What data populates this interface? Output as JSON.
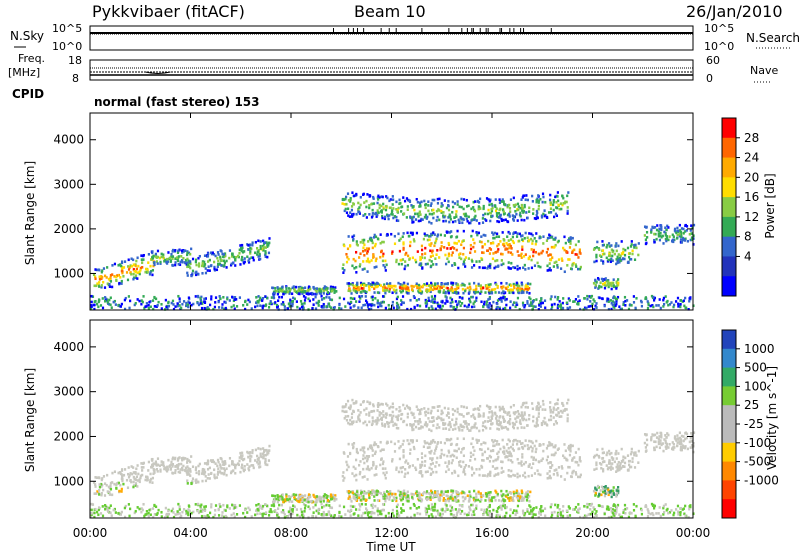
{
  "header": {
    "station": "Pykkvibaer (fitACF)",
    "beam": "Beam 10",
    "date": "26/Jan/2010"
  },
  "sky_panel": {
    "left_label": "N.Sky",
    "right_label": "N.Search",
    "left_ticks": [
      "10^5",
      "10^0"
    ],
    "right_ticks": [
      "10^5",
      "10^0"
    ]
  },
  "freq_panel": {
    "left_label_1": "Freq.",
    "left_label_2": "[MHz]",
    "right_label": "Nave",
    "left_ticks": [
      "18",
      "8"
    ],
    "right_ticks": [
      "60",
      "0"
    ],
    "cpid_label": "CPID",
    "cpid_text": "normal (fast stereo) 153"
  },
  "chart_data": [
    {
      "type": "heatmap",
      "name": "power",
      "ylabel": "Slant Range [km]",
      "yticks": [
        "4000",
        "3000",
        "2000",
        "1000"
      ],
      "ylim": [
        180,
        4600
      ],
      "xlim": [
        0,
        24
      ],
      "colorbar": {
        "label": "Power [dB]",
        "ticks": [
          "28",
          "24",
          "20",
          "16",
          "12",
          "8",
          "4"
        ],
        "colors": [
          "#ff0000",
          "#ff6600",
          "#ffaa00",
          "#ffdd00",
          "#88cc44",
          "#33aa55",
          "#3366cc",
          "#2233bb",
          "#0000ff"
        ]
      }
    },
    {
      "type": "heatmap",
      "name": "velocity",
      "ylabel": "Slant Range [km]",
      "yticks": [
        "4000",
        "3000",
        "2000",
        "1000"
      ],
      "ylim": [
        180,
        4600
      ],
      "xlim": [
        0,
        24
      ],
      "colorbar": {
        "label": "Velocity [m s^-1]",
        "ticks": [
          "1000",
          "500",
          "100",
          "25",
          "-25",
          "-100",
          "-500",
          "-1000"
        ],
        "colors": [
          "#2244bb",
          "#3388cc",
          "#33aa66",
          "#77cc33",
          "#bbbbbb",
          "#bbbbbb",
          "#ffcc00",
          "#ff8800",
          "#ff4400",
          "#ff0000"
        ]
      }
    }
  ],
  "x_axis": {
    "ticks": [
      "00:00",
      "04:00",
      "08:00",
      "12:00",
      "16:00",
      "20:00",
      "00:00"
    ],
    "label": "Time UT"
  },
  "colors": {
    "power": [
      "#0000ff",
      "#3366cc",
      "#33aa55",
      "#88cc44",
      "#ffdd00",
      "#ffaa00",
      "#ff6600",
      "#ff0000"
    ],
    "velocity_gray": "#c8c8c0",
    "velocity_green": "#66cc33",
    "velocity_orange": "#ffaa00",
    "velocity_teal": "#339966"
  }
}
